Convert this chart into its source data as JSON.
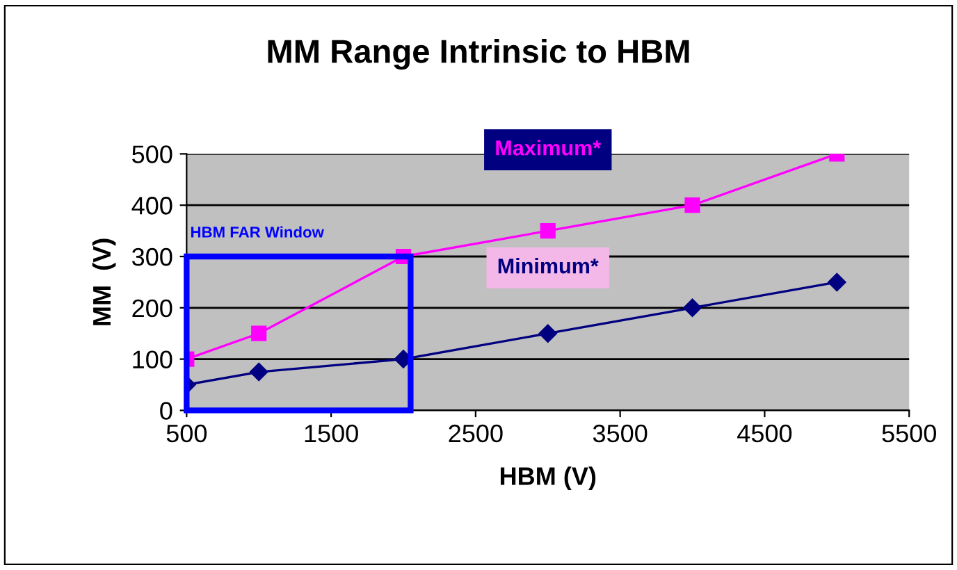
{
  "chart_data": {
    "type": "line",
    "title": "MM Range Intrinsic to HBM",
    "xlabel": "HBM (V)",
    "ylabel": "MM  (V)",
    "x": [
      500,
      1000,
      2000,
      3000,
      4000,
      5000
    ],
    "series": [
      {
        "name": "Maximum*",
        "color": "#ff00ff",
        "marker": "square",
        "values": [
          100,
          150,
          300,
          350,
          400,
          500
        ]
      },
      {
        "name": "Minimum*",
        "color": "#000080",
        "marker": "diamond",
        "values": [
          50,
          75,
          100,
          150,
          200,
          250
        ]
      }
    ],
    "xlim": [
      500,
      5500
    ],
    "xticks": [
      500,
      1500,
      2500,
      3500,
      4500,
      5500
    ],
    "ylim": [
      0,
      500
    ],
    "yticks": [
      0,
      100,
      200,
      300,
      400,
      500
    ],
    "grid": "y",
    "legend": false,
    "annotations": [
      "HBM FAR Window"
    ]
  }
}
